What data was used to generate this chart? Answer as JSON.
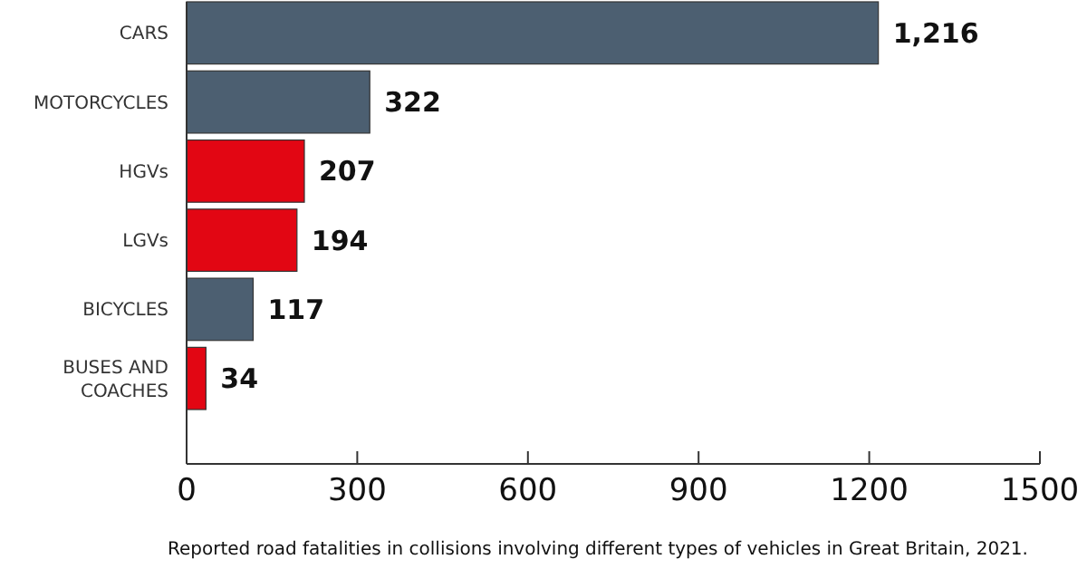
{
  "chart_data": {
    "type": "bar",
    "orientation": "horizontal",
    "categories": [
      "CARS",
      "MOTORCYCLES",
      "HGVs",
      "LGVs",
      "BICYCLES",
      "BUSES AND COACHES"
    ],
    "values": [
      1216,
      322,
      207,
      194,
      117,
      34
    ],
    "colors": [
      "#4c5f71",
      "#4c5f71",
      "#e20613",
      "#e20613",
      "#4c5f71",
      "#e20613"
    ],
    "value_labels": [
      "1,216",
      "322",
      "207",
      "194",
      "117",
      "34"
    ],
    "xlim": [
      0,
      1500
    ],
    "xticks": [
      0,
      300,
      600,
      900,
      1200,
      1500
    ],
    "xlabel": "Reported road fatalities in collisions involving different types of vehicles in Great Britain, 2021.",
    "grid": false
  }
}
